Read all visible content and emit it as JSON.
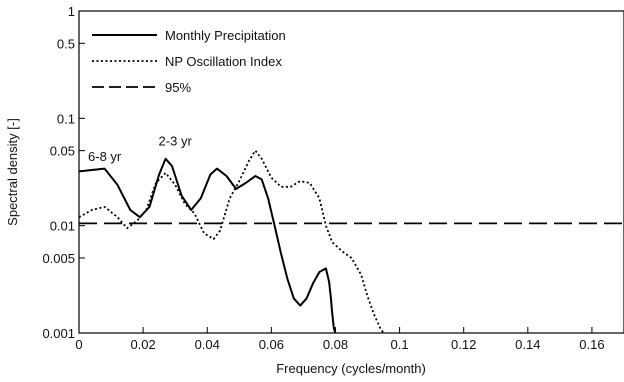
{
  "chart_data": {
    "type": "line",
    "title": "",
    "xlabel": "Frequency (cycles/month)",
    "ylabel": "Spectral density [-]",
    "xlim": [
      0,
      0.17
    ],
    "ylim": [
      0.001,
      1
    ],
    "y_scale": "log",
    "grid": false,
    "legend_position": "top-left",
    "x_ticks": [
      0,
      0.02,
      0.04,
      0.06,
      0.08,
      0.1,
      0.12,
      0.14,
      0.16
    ],
    "x_tick_labels": [
      "0",
      "0.02",
      "0.04",
      "0.06",
      "0.08",
      "0.1",
      "0.12",
      "0.14",
      "0.16"
    ],
    "y_ticks": [
      0.001,
      0.005,
      0.01,
      0.05,
      0.1,
      0.5,
      1
    ],
    "y_tick_labels": [
      "0.001",
      "0.005",
      "0.01",
      "0.05",
      "0.1",
      "0.5",
      "1"
    ],
    "annotations": [
      {
        "text": "6-8 yr",
        "x": 0.008,
        "y": 0.04
      },
      {
        "text": "2-3 yr",
        "x": 0.03,
        "y": 0.056
      }
    ],
    "series": [
      {
        "name": "Monthly Precipitation",
        "style": "solid",
        "x": [
          0,
          0.004,
          0.008,
          0.012,
          0.016,
          0.019,
          0.022,
          0.025,
          0.027,
          0.029,
          0.032,
          0.035,
          0.038,
          0.041,
          0.043,
          0.046,
          0.049,
          0.052,
          0.055,
          0.057,
          0.059,
          0.061,
          0.063,
          0.065,
          0.067,
          0.069,
          0.071,
          0.073,
          0.075,
          0.077,
          0.078,
          0.0785,
          0.079,
          0.0795,
          0.08
        ],
        "y": [
          0.032,
          0.033,
          0.034,
          0.024,
          0.014,
          0.012,
          0.015,
          0.03,
          0.042,
          0.036,
          0.019,
          0.014,
          0.018,
          0.03,
          0.034,
          0.029,
          0.022,
          0.025,
          0.029,
          0.027,
          0.018,
          0.01,
          0.0055,
          0.0032,
          0.0021,
          0.0018,
          0.0021,
          0.0029,
          0.0037,
          0.004,
          0.003,
          0.0022,
          0.0015,
          0.0011,
          0.001
        ]
      },
      {
        "name": "NP Oscillation Index",
        "style": "dotted",
        "x": [
          0,
          0.004,
          0.008,
          0.012,
          0.015,
          0.018,
          0.021,
          0.024,
          0.027,
          0.03,
          0.033,
          0.036,
          0.039,
          0.042,
          0.044,
          0.047,
          0.05,
          0.053,
          0.055,
          0.057,
          0.06,
          0.063,
          0.066,
          0.069,
          0.072,
          0.075,
          0.077,
          0.079,
          0.082,
          0.085,
          0.088,
          0.09,
          0.092,
          0.094,
          0.095
        ],
        "y": [
          0.012,
          0.014,
          0.015,
          0.012,
          0.0095,
          0.011,
          0.014,
          0.025,
          0.031,
          0.024,
          0.016,
          0.013,
          0.0085,
          0.0075,
          0.009,
          0.018,
          0.026,
          0.04,
          0.05,
          0.042,
          0.028,
          0.023,
          0.023,
          0.026,
          0.025,
          0.018,
          0.01,
          0.007,
          0.0058,
          0.005,
          0.0035,
          0.0022,
          0.0015,
          0.0011,
          0.001
        ]
      },
      {
        "name": "95%",
        "style": "dashed",
        "x": [
          0,
          0.17
        ],
        "y": [
          0.0105,
          0.0105
        ]
      }
    ]
  }
}
